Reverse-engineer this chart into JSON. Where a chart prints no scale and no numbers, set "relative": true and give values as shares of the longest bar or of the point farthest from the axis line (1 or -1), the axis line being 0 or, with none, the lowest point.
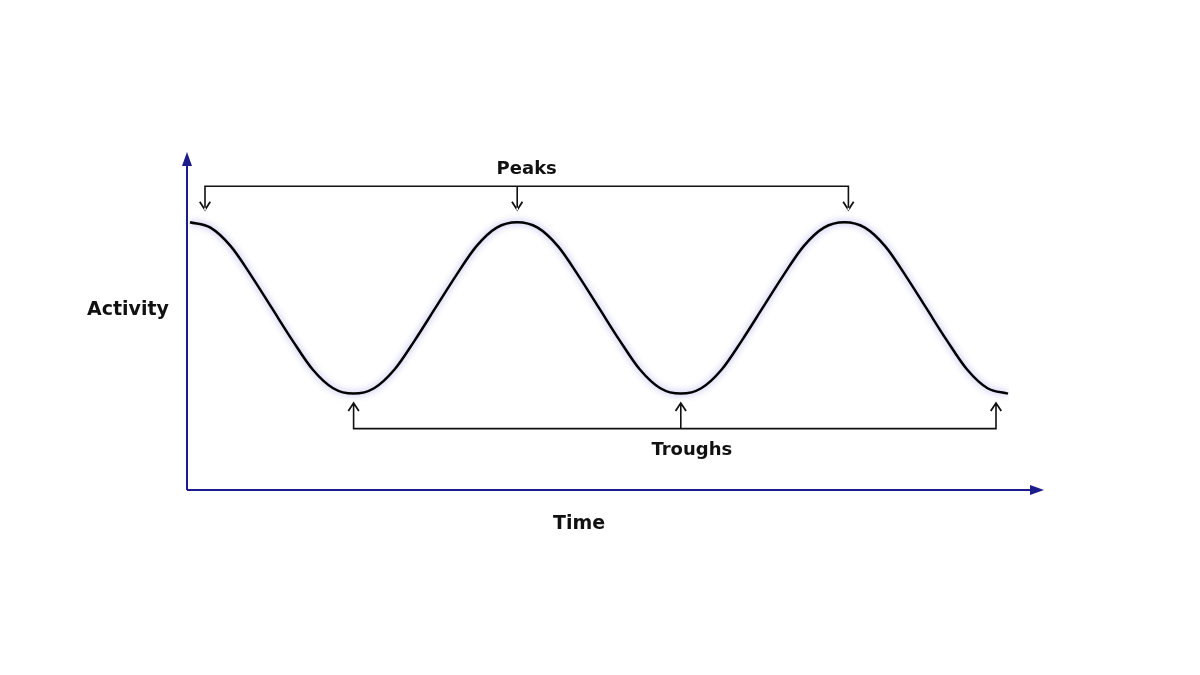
{
  "chart_data": {
    "type": "line",
    "xlabel": "Time",
    "ylabel": "Activity",
    "relative": true,
    "color": "#000000",
    "categories": [
      null,
      null,
      null,
      null,
      null,
      null,
      null,
      null,
      null,
      null,
      null,
      null,
      null,
      null,
      null,
      null,
      null,
      null,
      null,
      null,
      null,
      null,
      null,
      null,
      null,
      null,
      null,
      null,
      null,
      null,
      null,
      null,
      null,
      null,
      null,
      null,
      null,
      null,
      null,
      null,
      null
    ],
    "values": [
      1,
      0.98,
      0.91,
      0.8,
      0.68,
      0.56,
      0.45,
      0.38,
      0.36,
      0.38,
      0.45,
      0.56,
      0.68,
      0.8,
      0.91,
      0.98,
      1,
      0.98,
      0.91,
      0.8,
      0.68,
      0.56,
      0.45,
      0.38,
      0.36,
      0.38,
      0.45,
      0.56,
      0.68,
      0.8,
      0.91,
      0.98,
      1,
      0.98,
      0.91,
      0.8,
      0.68,
      0.56,
      0.45,
      0.38,
      0.36
    ],
    "annotations": [
      "Peaks",
      "Troughs"
    ],
    "legend": false,
    "marker": "none",
    "line_style": "solid"
  }
}
